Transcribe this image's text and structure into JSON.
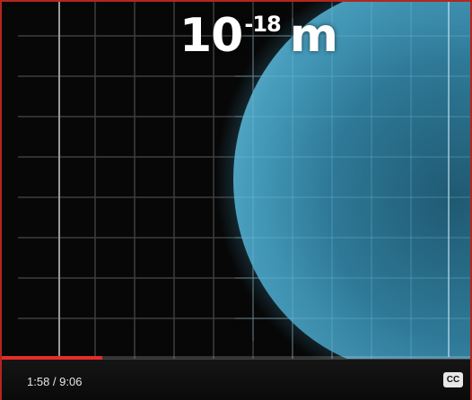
{
  "video": {
    "scale_base": "10",
    "scale_exponent": "-18",
    "scale_unit": "m"
  },
  "controls": {
    "current_time": "1:58",
    "duration": "9:06",
    "progress_fraction": 0.216,
    "cc_label": "CC"
  },
  "colors": {
    "progress": "#e52d27",
    "sphere": "#3d8fae",
    "grid_line": "#5a5a5a",
    "frame_border": "#b3261e"
  }
}
